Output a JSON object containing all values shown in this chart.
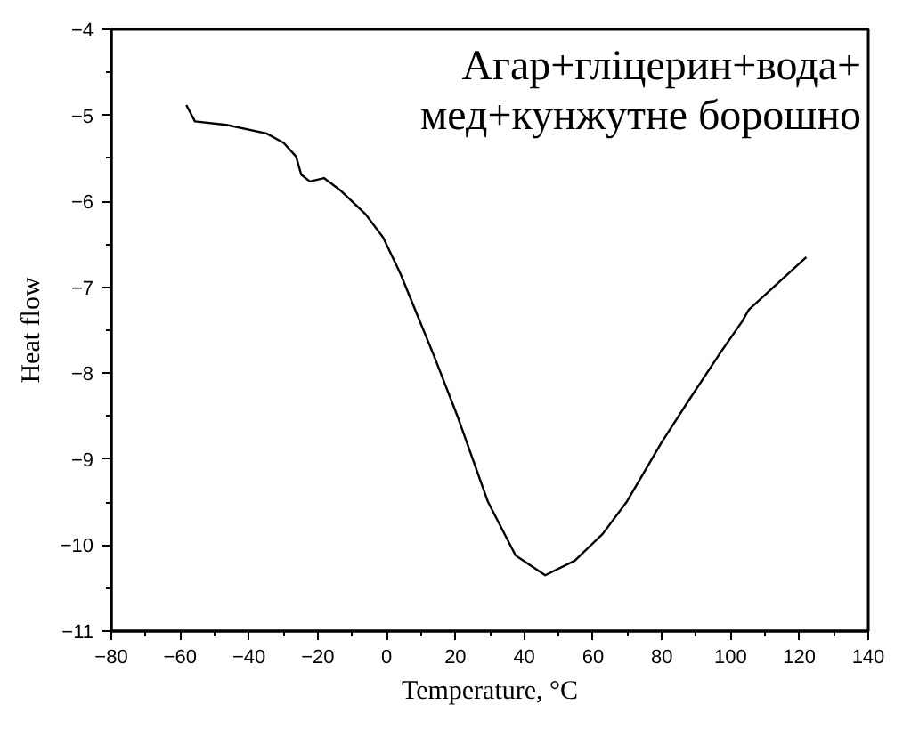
{
  "chart_data": {
    "type": "line",
    "xlabel": "Temperature, °C",
    "ylabel": "Heat flow",
    "annotations": [
      "Агар+гліцерин+вода+",
      "мед+кунжутне борошно"
    ],
    "xlim": [
      -80,
      140
    ],
    "xticks": [
      -80,
      -60,
      -40,
      -20,
      0,
      20,
      40,
      60,
      80,
      100,
      120,
      140
    ],
    "ylim": [
      -11,
      -4
    ],
    "yticks": [
      -11,
      -10,
      -9,
      -8,
      -7,
      -6,
      -5,
      -4
    ],
    "grid": false,
    "marker": "none",
    "line_style": "solid",
    "series": [
      {
        "color": "#000000",
        "x": [
          -58.2,
          -55.7,
          -46.6,
          -34.9,
          -29.9,
          -26.3,
          -24.8,
          -22.3,
          -18.2,
          -13.2,
          -6.1,
          -1,
          4,
          9.1,
          14,
          20.7,
          29.4,
          37.5,
          46.1,
          54.7,
          62.8,
          69.9,
          80,
          88.1,
          96.7,
          103.3,
          105.3,
          122
        ],
        "values": [
          -4.88,
          -5.07,
          -5.11,
          -5.21,
          -5.32,
          -5.48,
          -5.69,
          -5.77,
          -5.73,
          -5.88,
          -6.15,
          -6.42,
          -6.84,
          -7.34,
          -7.82,
          -8.51,
          -9.49,
          -10.12,
          -10.35,
          -10.18,
          -9.87,
          -9.49,
          -8.8,
          -8.3,
          -7.78,
          -7.4,
          -7.26,
          -6.65
        ]
      }
    ]
  }
}
